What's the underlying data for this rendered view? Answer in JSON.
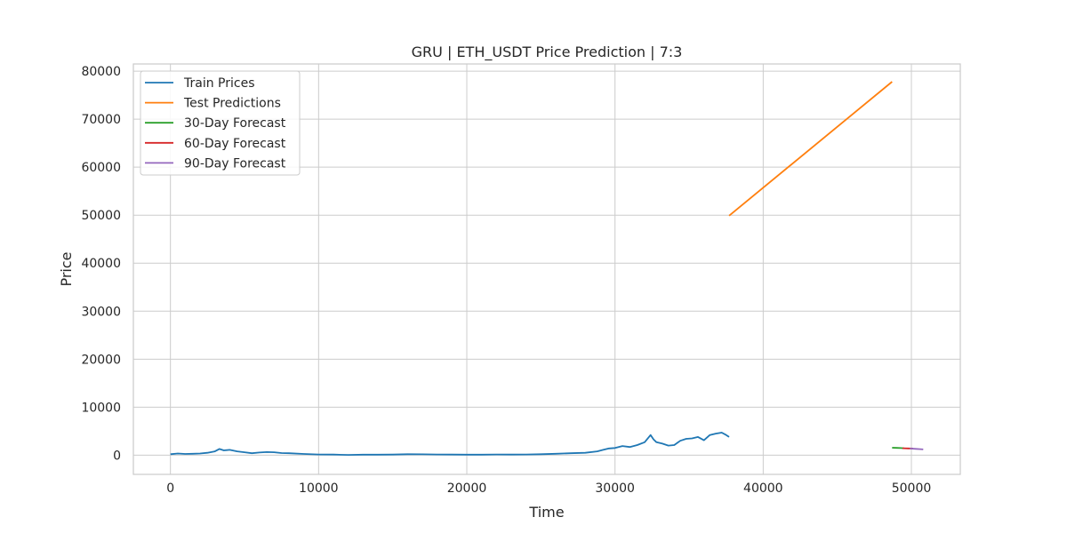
{
  "chart_data": {
    "type": "line",
    "title": "GRU | ETH_USDT Price Prediction | 7:3",
    "xlabel": "Time",
    "ylabel": "Price",
    "xlim": [
      -2500,
      53300
    ],
    "ylim": [
      -4000,
      81500
    ],
    "xticks": [
      0,
      10000,
      20000,
      30000,
      40000,
      50000
    ],
    "yticks": [
      0,
      10000,
      20000,
      30000,
      40000,
      50000,
      60000,
      70000,
      80000
    ],
    "grid": true,
    "legend_position": "upper-left",
    "series": [
      {
        "name": "Train Prices",
        "color": "#1f77b4",
        "x": [
          0,
          500,
          1000,
          1500,
          2000,
          2500,
          3000,
          3300,
          3600,
          4000,
          4500,
          5000,
          5500,
          6000,
          6500,
          7000,
          7500,
          8000,
          9000,
          10000,
          11000,
          12000,
          13000,
          14000,
          15000,
          16000,
          17000,
          18000,
          19000,
          20000,
          21000,
          22000,
          23000,
          24000,
          25000,
          26000,
          27000,
          28000,
          28800,
          29200,
          29600,
          30000,
          30500,
          31000,
          31500,
          32000,
          32400,
          32600,
          32800,
          33200,
          33600,
          34000,
          34400,
          34800,
          35200,
          35600,
          36000,
          36400,
          36800,
          37200,
          37500,
          37700
        ],
        "y": [
          200,
          350,
          250,
          300,
          350,
          500,
          800,
          1300,
          1000,
          1100,
          800,
          600,
          400,
          550,
          650,
          600,
          450,
          400,
          250,
          150,
          120,
          50,
          100,
          100,
          130,
          200,
          180,
          150,
          120,
          100,
          100,
          150,
          120,
          150,
          200,
          300,
          400,
          500,
          800,
          1100,
          1400,
          1500,
          1900,
          1700,
          2100,
          2700,
          4200,
          3300,
          2700,
          2400,
          2000,
          2100,
          3000,
          3400,
          3500,
          3800,
          3100,
          4200,
          4500,
          4700,
          4200,
          3800
        ]
      },
      {
        "name": "Test Predictions",
        "color": "#ff7f0e",
        "x": [
          37700,
          48700
        ],
        "y": [
          49900,
          77800
        ]
      },
      {
        "name": "30-Day Forecast",
        "color": "#2ca02c",
        "x": [
          48700,
          49000,
          49300,
          49500
        ],
        "y": [
          1550,
          1520,
          1480,
          1440
        ]
      },
      {
        "name": "60-Day Forecast",
        "color": "#d62728",
        "x": [
          49400,
          49800,
          50100
        ],
        "y": [
          1450,
          1400,
          1380
        ]
      },
      {
        "name": "90-Day Forecast",
        "color": "#9467bd",
        "x": [
          49900,
          50300,
          50600,
          50800
        ],
        "y": [
          1380,
          1320,
          1260,
          1200
        ]
      }
    ]
  }
}
